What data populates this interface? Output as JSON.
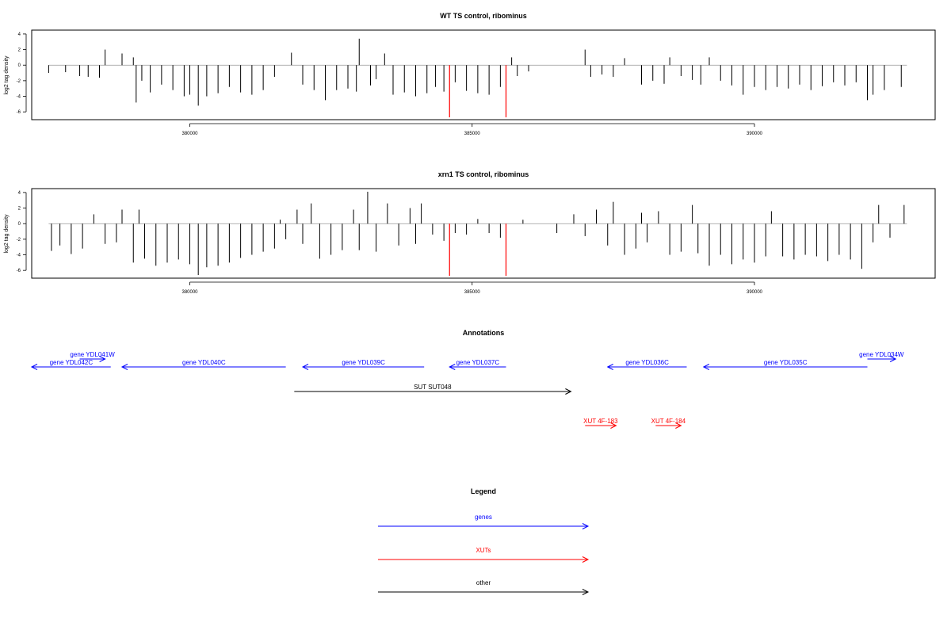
{
  "chart_data": [
    {
      "type": "bar",
      "title": "WT TS control, ribominus",
      "ylabel": "log2 tag density",
      "xlabel": "",
      "xlim": [
        377200,
        393200
      ],
      "ylim": [
        -7,
        4.5
      ],
      "xticks": [
        380000,
        385000,
        390000
      ],
      "yticks": [
        -6,
        -4,
        -2,
        0,
        2,
        4
      ],
      "baseline_span": [
        377500,
        392700
      ],
      "highlight_color": "#ff0000",
      "bar_color": "#000000",
      "highlights": [
        {
          "x": 384600,
          "y": -6.7
        },
        {
          "x": 385600,
          "y": -6.7
        }
      ],
      "bars": [
        [
          377500,
          -1.0
        ],
        [
          377800,
          -0.9
        ],
        [
          378050,
          -1.4
        ],
        [
          378200,
          -1.5
        ],
        [
          378400,
          -1.6
        ],
        [
          378500,
          2.0
        ],
        [
          378800,
          1.5
        ],
        [
          379000,
          1.0
        ],
        [
          379050,
          -4.8
        ],
        [
          379150,
          -2.0
        ],
        [
          379300,
          -3.5
        ],
        [
          379500,
          -2.5
        ],
        [
          379700,
          -3.2
        ],
        [
          379900,
          -4.0
        ],
        [
          380000,
          -3.8
        ],
        [
          380150,
          -5.2
        ],
        [
          380300,
          -4.0
        ],
        [
          380500,
          -3.6
        ],
        [
          380700,
          -2.8
        ],
        [
          380900,
          -3.5
        ],
        [
          381100,
          -3.8
        ],
        [
          381300,
          -3.2
        ],
        [
          381500,
          -1.5
        ],
        [
          381800,
          1.6
        ],
        [
          382000,
          -2.5
        ],
        [
          382200,
          -3.2
        ],
        [
          382400,
          -4.5
        ],
        [
          382600,
          -3.2
        ],
        [
          382800,
          -3.0
        ],
        [
          382950,
          -3.4
        ],
        [
          383000,
          3.4
        ],
        [
          383200,
          -2.6
        ],
        [
          383300,
          -1.8
        ],
        [
          383450,
          1.5
        ],
        [
          383600,
          -3.8
        ],
        [
          383800,
          -3.5
        ],
        [
          384000,
          -4.0
        ],
        [
          384200,
          -3.6
        ],
        [
          384350,
          -2.8
        ],
        [
          384500,
          -3.4
        ],
        [
          384700,
          -2.2
        ],
        [
          384900,
          -3.3
        ],
        [
          385100,
          -3.6
        ],
        [
          385300,
          -3.8
        ],
        [
          385500,
          -2.8
        ],
        [
          385700,
          1.0
        ],
        [
          385800,
          -1.4
        ],
        [
          386000,
          -0.8
        ],
        [
          387000,
          2.0
        ],
        [
          387100,
          -1.5
        ],
        [
          387300,
          -1.2
        ],
        [
          387500,
          -1.5
        ],
        [
          387700,
          0.9
        ],
        [
          388000,
          -2.5
        ],
        [
          388200,
          -2.0
        ],
        [
          388400,
          -2.4
        ],
        [
          388500,
          1.0
        ],
        [
          388700,
          -1.4
        ],
        [
          388900,
          -1.9
        ],
        [
          389050,
          -2.5
        ],
        [
          389200,
          1.0
        ],
        [
          389400,
          -2.0
        ],
        [
          389600,
          -2.6
        ],
        [
          389800,
          -3.8
        ],
        [
          390000,
          -2.8
        ],
        [
          390200,
          -3.2
        ],
        [
          390400,
          -2.8
        ],
        [
          390600,
          -3.0
        ],
        [
          390800,
          -2.5
        ],
        [
          391000,
          -3.2
        ],
        [
          391200,
          -2.7
        ],
        [
          391400,
          -2.2
        ],
        [
          391600,
          -2.6
        ],
        [
          391800,
          -2.2
        ],
        [
          392000,
          -4.5
        ],
        [
          392100,
          -3.8
        ],
        [
          392300,
          -3.2
        ],
        [
          392600,
          -2.8
        ]
      ]
    },
    {
      "type": "bar",
      "title": "xrn1 TS control, ribominus",
      "ylabel": "log2 tag density",
      "xlabel": "",
      "xlim": [
        377200,
        393200
      ],
      "ylim": [
        -7,
        4.5
      ],
      "xticks": [
        380000,
        385000,
        390000
      ],
      "yticks": [
        -6,
        -4,
        -2,
        0,
        2,
        4
      ],
      "baseline_span": [
        377500,
        392700
      ],
      "highlight_color": "#ff0000",
      "bar_color": "#000000",
      "highlights": [
        {
          "x": 384600,
          "y": -6.7
        },
        {
          "x": 385600,
          "y": -6.7
        }
      ],
      "bars": [
        [
          377550,
          -3.5
        ],
        [
          377700,
          -2.8
        ],
        [
          377900,
          -3.9
        ],
        [
          378100,
          -3.2
        ],
        [
          378300,
          1.2
        ],
        [
          378500,
          -2.6
        ],
        [
          378700,
          -2.4
        ],
        [
          378800,
          1.8
        ],
        [
          379000,
          -5.0
        ],
        [
          379100,
          1.8
        ],
        [
          379200,
          -4.5
        ],
        [
          379400,
          -5.4
        ],
        [
          379600,
          -5.0
        ],
        [
          379800,
          -4.6
        ],
        [
          380000,
          -5.2
        ],
        [
          380150,
          -6.6
        ],
        [
          380300,
          -5.6
        ],
        [
          380500,
          -5.4
        ],
        [
          380700,
          -5.0
        ],
        [
          380900,
          -4.4
        ],
        [
          381100,
          -4.0
        ],
        [
          381300,
          -3.6
        ],
        [
          381500,
          -3.2
        ],
        [
          381600,
          0.5
        ],
        [
          381700,
          -2.0
        ],
        [
          381900,
          1.8
        ],
        [
          382000,
          -2.6
        ],
        [
          382150,
          2.6
        ],
        [
          382300,
          -4.5
        ],
        [
          382500,
          -4.0
        ],
        [
          382700,
          -3.4
        ],
        [
          382900,
          1.8
        ],
        [
          383000,
          -3.4
        ],
        [
          383150,
          4.1
        ],
        [
          383300,
          -3.6
        ],
        [
          383500,
          2.6
        ],
        [
          383700,
          -2.8
        ],
        [
          383900,
          2.0
        ],
        [
          384000,
          -2.6
        ],
        [
          384100,
          2.6
        ],
        [
          384300,
          -1.4
        ],
        [
          384500,
          -2.2
        ],
        [
          384700,
          -1.2
        ],
        [
          384900,
          -1.4
        ],
        [
          385100,
          0.6
        ],
        [
          385300,
          -1.2
        ],
        [
          385500,
          -1.8
        ],
        [
          385900,
          0.5
        ],
        [
          386500,
          -1.2
        ],
        [
          386800,
          1.2
        ],
        [
          387000,
          -1.6
        ],
        [
          387200,
          1.8
        ],
        [
          387400,
          -2.8
        ],
        [
          387500,
          2.8
        ],
        [
          387700,
          -4.0
        ],
        [
          387900,
          -3.2
        ],
        [
          388000,
          1.4
        ],
        [
          388100,
          -2.4
        ],
        [
          388300,
          1.6
        ],
        [
          388500,
          -4.0
        ],
        [
          388700,
          -3.6
        ],
        [
          388900,
          2.4
        ],
        [
          389000,
          -3.8
        ],
        [
          389200,
          -5.4
        ],
        [
          389400,
          -4.0
        ],
        [
          389600,
          -5.2
        ],
        [
          389800,
          -4.6
        ],
        [
          390000,
          -5.0
        ],
        [
          390200,
          -4.2
        ],
        [
          390300,
          1.6
        ],
        [
          390500,
          -4.2
        ],
        [
          390700,
          -4.6
        ],
        [
          390900,
          -4.0
        ],
        [
          391100,
          -4.2
        ],
        [
          391300,
          -4.8
        ],
        [
          391500,
          -4.0
        ],
        [
          391700,
          -4.6
        ],
        [
          391900,
          -5.8
        ],
        [
          392100,
          -2.4
        ],
        [
          392200,
          2.4
        ],
        [
          392400,
          -1.8
        ],
        [
          392650,
          2.4
        ]
      ]
    }
  ],
  "annotations": {
    "title": "Annotations",
    "features": [
      {
        "label": "gene YDL042C",
        "type": "gene",
        "start": 377200,
        "end": 378600,
        "strand": "-",
        "row": 1
      },
      {
        "label": "gene YDL041W",
        "type": "gene",
        "start": 378050,
        "end": 378500,
        "strand": "+",
        "row": 0
      },
      {
        "label": "gene YDL040C",
        "type": "gene",
        "start": 378800,
        "end": 381700,
        "strand": "-",
        "row": 1
      },
      {
        "label": "gene YDL039C",
        "type": "gene",
        "start": 382000,
        "end": 384150,
        "strand": "-",
        "row": 1
      },
      {
        "label": "gene YDL037C",
        "type": "gene",
        "start": 384600,
        "end": 385600,
        "strand": "-",
        "row": 1
      },
      {
        "label": "gene YDL036C",
        "type": "gene",
        "start": 387400,
        "end": 388800,
        "strand": "-",
        "row": 1
      },
      {
        "label": "gene YDL035C",
        "type": "gene",
        "start": 389100,
        "end": 392000,
        "strand": "-",
        "row": 1
      },
      {
        "label": "gene YDL034W",
        "type": "gene",
        "start": 392000,
        "end": 392500,
        "strand": "+",
        "row": 0
      },
      {
        "label": "SUT SUT048",
        "type": "other",
        "start": 381850,
        "end": 386750,
        "strand": "+",
        "row": 2
      },
      {
        "label": "XUT 4F-183",
        "type": "xut",
        "start": 387000,
        "end": 387550,
        "strand": "+",
        "row": 3
      },
      {
        "label": "XUT 4F-184",
        "type": "xut",
        "start": 388250,
        "end": 388700,
        "strand": "+",
        "row": 3
      }
    ]
  },
  "legend": {
    "title": "Legend",
    "items": [
      {
        "label": "genes",
        "type": "gene"
      },
      {
        "label": "XUTs",
        "type": "xut"
      },
      {
        "label": "other",
        "type": "other"
      }
    ]
  },
  "colors": {
    "gene": "#0000ff",
    "xut": "#ff0000",
    "other": "#000000"
  }
}
